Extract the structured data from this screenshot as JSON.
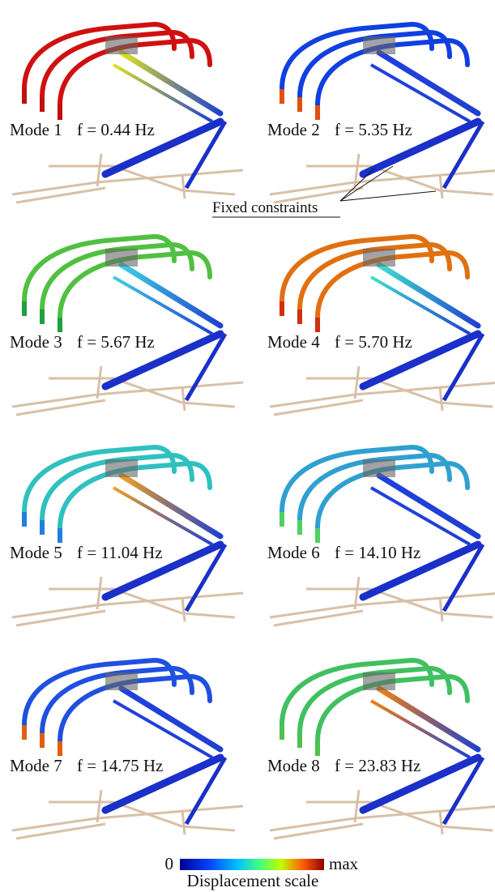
{
  "panels": [
    {
      "mode": "Mode 1",
      "frequency": "f = 0.44 Hz"
    },
    {
      "mode": "Mode 2",
      "frequency": "f = 5.35 Hz"
    },
    {
      "mode": "Mode 3",
      "frequency": "f = 5.67 Hz"
    },
    {
      "mode": "Mode 4",
      "frequency": "f = 5.70 Hz"
    },
    {
      "mode": "Mode 5",
      "frequency": "f = 11.04 Hz"
    },
    {
      "mode": "Mode 6",
      "frequency": "f = 14.10 Hz"
    },
    {
      "mode": "Mode 7",
      "frequency": "f = 14.75 Hz"
    },
    {
      "mode": "Mode 8",
      "frequency": "f = 23.83 Hz"
    }
  ],
  "annotation": "Fixed constraints",
  "colorbar": {
    "min_label": "0",
    "max_label": "max",
    "title": "Displacement scale"
  }
}
